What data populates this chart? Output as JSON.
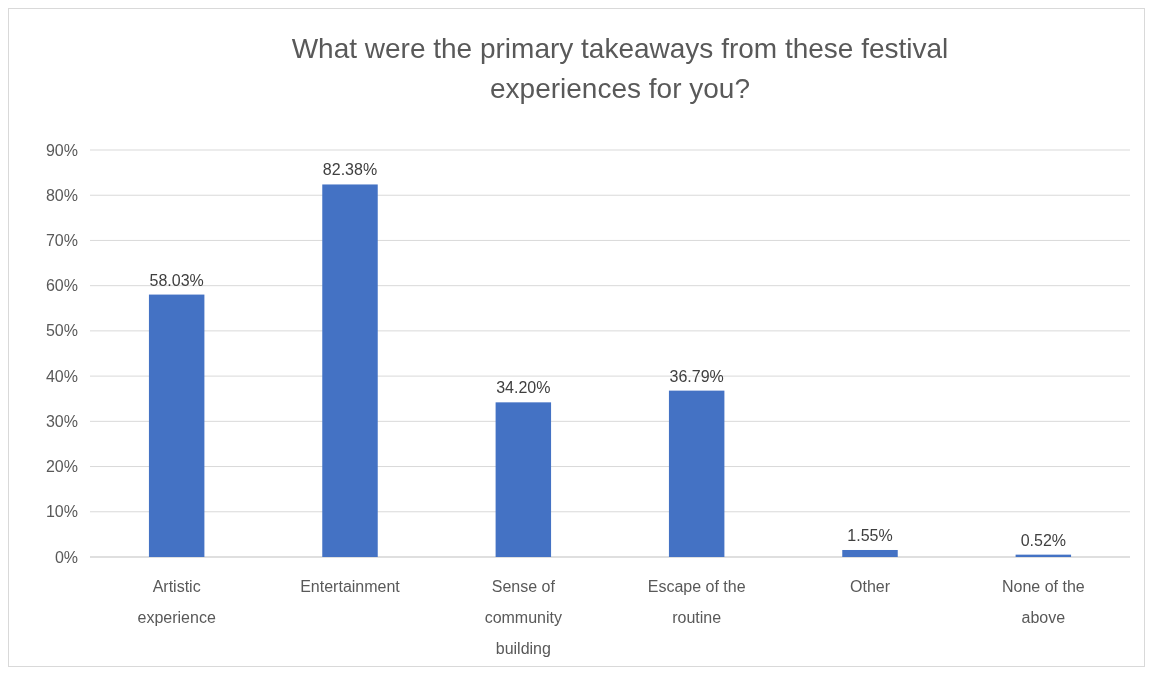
{
  "chart_data": {
    "type": "bar",
    "title": "What were the primary takeaways from these festival experiences for you?",
    "categories": [
      "Artistic experience",
      "Entertainment",
      "Sense of community building",
      "Escape of the routine",
      "Other",
      "None of the above"
    ],
    "values": [
      58.03,
      82.38,
      34.2,
      36.79,
      1.55,
      0.52
    ],
    "value_labels": [
      "58.03%",
      "82.38%",
      "34.20%",
      "36.79%",
      "1.55%",
      "0.52%"
    ],
    "color": "#4472c4",
    "ylim": [
      0,
      90
    ],
    "yticks": [
      {
        "value": 0,
        "label": "0%"
      },
      {
        "value": 10,
        "label": "10%"
      },
      {
        "value": 20,
        "label": "20%"
      },
      {
        "value": 30,
        "label": "30%"
      },
      {
        "value": 40,
        "label": "40%"
      },
      {
        "value": 50,
        "label": "50%"
      },
      {
        "value": 60,
        "label": "60%"
      },
      {
        "value": 70,
        "label": "70%"
      },
      {
        "value": 80,
        "label": "80%"
      },
      {
        "value": 90,
        "label": "90%"
      }
    ],
    "grid": "y"
  }
}
